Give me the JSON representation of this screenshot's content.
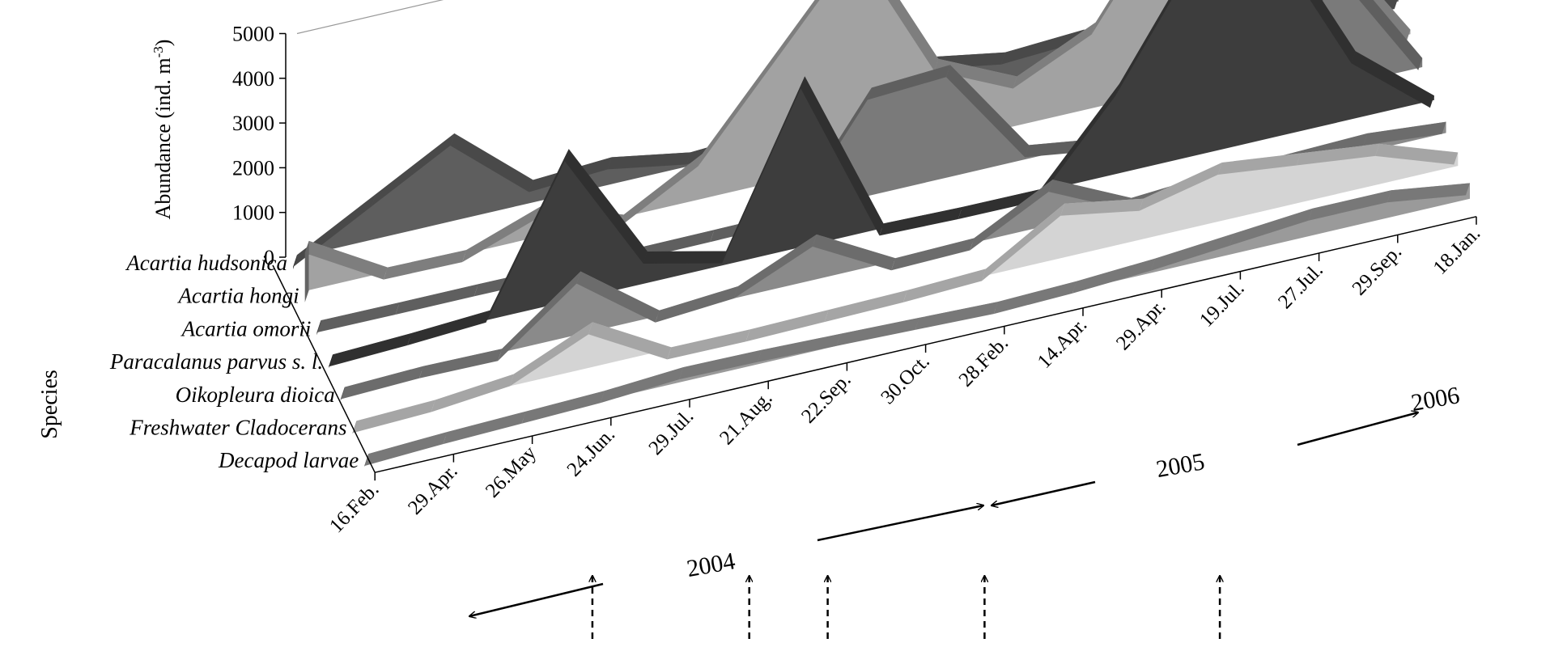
{
  "chart_data": {
    "type": "area",
    "title": "",
    "ylabel_parts": [
      "Abundance (ind. m",
      "-3",
      ")"
    ],
    "zlabel": "Species",
    "yticks": [
      0,
      1000,
      2000,
      3000,
      4000,
      5000
    ],
    "ylim": [
      0,
      5000
    ],
    "categories": [
      "16.Feb.",
      "29.Apr.",
      "26.May",
      "24.Jun.",
      "29.Jul.",
      "21.Aug.",
      "22.Sep.",
      "30.Oct.",
      "28.Feb.",
      "14.Apr.",
      "29.Apr.",
      "19.Jul.",
      "27.Jul.",
      "29.Sep.",
      "18.Jan."
    ],
    "series": [
      {
        "name": "Acartia hudsonica",
        "color": "#5e5e5e",
        "values": [
          50,
          1000,
          1950,
          500,
          600,
          300,
          400,
          4900,
          1200,
          900,
          1000,
          500,
          300,
          200,
          100
        ]
      },
      {
        "name": "Acartia hongi",
        "color": "#a2a2a2",
        "values": [
          1100,
          100,
          80,
          700,
          50,
          1000,
          3000,
          5000,
          1900,
          1100,
          1900,
          4300,
          4400,
          2500,
          100
        ]
      },
      {
        "name": "Acartia omorii",
        "color": "#7a7a7a",
        "values": [
          60,
          50,
          50,
          40,
          30,
          40,
          50,
          2400,
          2500,
          300,
          50,
          80,
          600,
          2700,
          200
        ]
      },
      {
        "name": "Paracalanus parvus s. l.",
        "color": "#3d3d3d",
        "values": [
          30,
          100,
          200,
          3400,
          700,
          300,
          3800,
          100,
          60,
          50,
          2000,
          4600,
          4600,
          1500,
          100
        ]
      },
      {
        "name": "Oikopleura dioica",
        "color": "#8a8a8a",
        "values": [
          40,
          100,
          80,
          1400,
          120,
          250,
          1000,
          60,
          100,
          1000,
          180,
          300,
          350,
          400,
          250
        ]
      },
      {
        "name": "Freshwater Cladocerans",
        "color": "#d4d4d4",
        "values": [
          20,
          80,
          250,
          1000,
          30,
          20,
          50,
          80,
          150,
          1200,
          900,
          1300,
          1100,
          900,
          300
        ]
      },
      {
        "name": "Decapod larvae",
        "color": "#9a9a9a",
        "values": [
          20,
          100,
          150,
          200,
          320,
          300,
          250,
          200,
          150,
          200,
          300,
          450,
          600,
          600,
          350
        ]
      }
    ],
    "annotations": {
      "years": [
        "2004",
        "2005",
        "2006"
      ],
      "dashed_arrow_categories": [
        "24.Jun.",
        "21.Aug.",
        "22.Sep.",
        "28.Feb.",
        "19.Jul."
      ]
    }
  }
}
